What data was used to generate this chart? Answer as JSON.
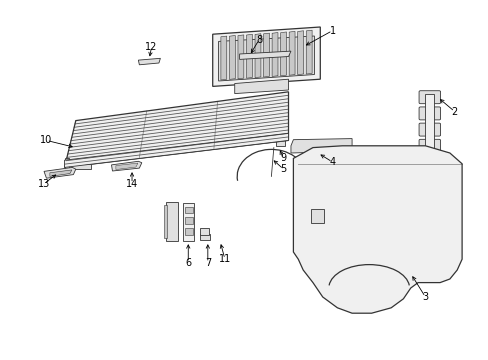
{
  "background_color": "#ffffff",
  "line_color": "#333333",
  "fig_width": 4.89,
  "fig_height": 3.6,
  "dpi": 100,
  "label_targets": {
    "1": {
      "lpos": [
        0.68,
        0.915
      ],
      "tpos": [
        0.62,
        0.87
      ]
    },
    "2": {
      "lpos": [
        0.93,
        0.69
      ],
      "tpos": [
        0.895,
        0.73
      ]
    },
    "3": {
      "lpos": [
        0.87,
        0.175
      ],
      "tpos": [
        0.84,
        0.24
      ]
    },
    "4": {
      "lpos": [
        0.68,
        0.55
      ],
      "tpos": [
        0.65,
        0.575
      ]
    },
    "5": {
      "lpos": [
        0.58,
        0.53
      ],
      "tpos": [
        0.555,
        0.56
      ]
    },
    "6": {
      "lpos": [
        0.385,
        0.27
      ],
      "tpos": [
        0.385,
        0.33
      ]
    },
    "7": {
      "lpos": [
        0.425,
        0.27
      ],
      "tpos": [
        0.425,
        0.33
      ]
    },
    "8": {
      "lpos": [
        0.53,
        0.89
      ],
      "tpos": [
        0.51,
        0.845
      ]
    },
    "9": {
      "lpos": [
        0.58,
        0.56
      ],
      "tpos": [
        0.57,
        0.59
      ]
    },
    "10": {
      "lpos": [
        0.095,
        0.61
      ],
      "tpos": [
        0.155,
        0.59
      ]
    },
    "11": {
      "lpos": [
        0.46,
        0.28
      ],
      "tpos": [
        0.45,
        0.33
      ]
    },
    "12": {
      "lpos": [
        0.31,
        0.87
      ],
      "tpos": [
        0.305,
        0.835
      ]
    },
    "13": {
      "lpos": [
        0.09,
        0.49
      ],
      "tpos": [
        0.12,
        0.52
      ]
    },
    "14": {
      "lpos": [
        0.27,
        0.49
      ],
      "tpos": [
        0.27,
        0.53
      ]
    }
  }
}
